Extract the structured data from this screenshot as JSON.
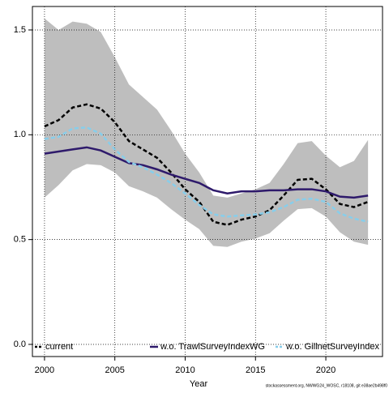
{
  "chart_data": {
    "type": "line",
    "x": [
      2000,
      2001,
      2002,
      2003,
      2004,
      2005,
      2006,
      2007,
      2008,
      2009,
      2010,
      2011,
      2012,
      2013,
      2014,
      2015,
      2016,
      2017,
      2018,
      2019,
      2020,
      2021,
      2022,
      2023
    ],
    "band": {
      "color": "#bebebe",
      "upper": [
        1.555,
        1.5,
        1.54,
        1.53,
        1.49,
        1.37,
        1.24,
        1.18,
        1.12,
        1.02,
        0.91,
        0.82,
        0.71,
        0.7,
        0.72,
        0.74,
        0.77,
        0.86,
        0.96,
        0.97,
        0.9,
        0.845,
        0.875,
        0.975
      ],
      "lower": [
        0.7,
        0.76,
        0.83,
        0.86,
        0.855,
        0.82,
        0.755,
        0.73,
        0.7,
        0.645,
        0.595,
        0.55,
        0.47,
        0.465,
        0.49,
        0.505,
        0.53,
        0.59,
        0.645,
        0.65,
        0.61,
        0.535,
        0.49,
        0.475
      ]
    },
    "series": [
      {
        "name": "current",
        "color": "#000000",
        "dash": true,
        "values": [
          1.04,
          1.07,
          1.13,
          1.145,
          1.125,
          1.06,
          0.97,
          0.93,
          0.89,
          0.82,
          0.74,
          0.68,
          0.585,
          0.57,
          0.595,
          0.61,
          0.64,
          0.71,
          0.785,
          0.79,
          0.74,
          0.67,
          0.655,
          0.68
        ]
      },
      {
        "name": "w.o. TrawlSurveyIndexWG",
        "color": "#2e1a6b",
        "dash": false,
        "values": [
          0.91,
          0.92,
          0.93,
          0.94,
          0.925,
          0.895,
          0.865,
          0.855,
          0.835,
          0.81,
          0.79,
          0.77,
          0.735,
          0.72,
          0.73,
          0.73,
          0.735,
          0.735,
          0.74,
          0.74,
          0.73,
          0.705,
          0.7,
          0.71
        ]
      },
      {
        "name": "w.o. GillnetSurveyIndex",
        "color": "#87ceeb",
        "dash": true,
        "values": [
          0.98,
          0.99,
          1.03,
          1.035,
          1.005,
          0.93,
          0.87,
          0.845,
          0.81,
          0.77,
          0.72,
          0.665,
          0.62,
          0.61,
          0.615,
          0.62,
          0.63,
          0.655,
          0.69,
          0.695,
          0.68,
          0.625,
          0.6,
          0.585
        ]
      }
    ],
    "xlim": [
      1999.14,
      2024.03
    ],
    "xticks": [
      2000,
      2005,
      2010,
      2015,
      2020
    ],
    "ylim": [
      -0.058,
      1.612
    ],
    "yticks": [
      {
        "value": 0,
        "label": "0.0"
      },
      0.5,
      {
        "value": 1,
        "label": "1.0"
      },
      1.5
    ],
    "grid": true,
    "legend": "bottom",
    "xlabel": "Year",
    "footnote": "stockassessment.org, NWWG24_WOSC, r18108, git e38ae2b498f0"
  }
}
